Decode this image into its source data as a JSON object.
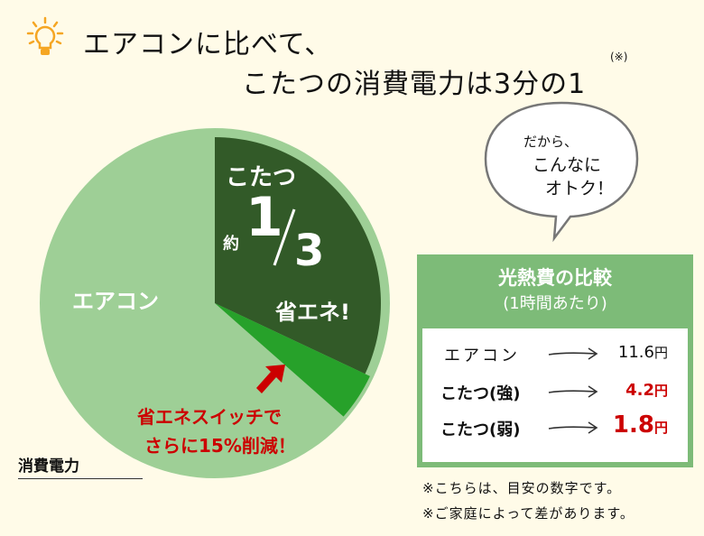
{
  "title": {
    "line1": "エアコンに比べて、",
    "line2": "こたつの消費電力は3分の1",
    "note_mark": "(※)",
    "icon": "lightbulb-icon"
  },
  "chart_data": {
    "type": "pie",
    "title": "",
    "slices": [
      {
        "label": "こたつ",
        "value": 0.32,
        "color": "#325a28"
      },
      {
        "label": "省エネスイッチ",
        "value": 0.045,
        "color": "#27a12a"
      },
      {
        "label": "エアコン",
        "value": 0.635,
        "color": "#9ecf96"
      }
    ],
    "annotations": {
      "kotatsu": "こたつ",
      "approx": "約",
      "numerator": "1",
      "denominator": "3",
      "savings": "省エネ!",
      "aircon": "エアコン",
      "switch_line1": "省エネスイッチで",
      "switch_line2": "さらに15%削減！",
      "axis_label": "消費電力"
    }
  },
  "bubble": {
    "line1": "だから、",
    "line2": "こんなに",
    "line3": "オトク！"
  },
  "comparison": {
    "title": "光熱費の比較",
    "subtitle": "(1時間あたり)",
    "rows": [
      {
        "label": "エアコン",
        "value": "11.6",
        "unit": "円"
      },
      {
        "label": "こたつ(強)",
        "value": "4.2",
        "unit": "円"
      },
      {
        "label": "こたつ(弱)",
        "value": "1.8",
        "unit": "円"
      }
    ]
  },
  "footnotes": [
    "※こちらは、目安の数字です。",
    "※ご家庭によって差があります。"
  ],
  "colors": {
    "accent_red": "#cc0000",
    "box_green": "#7dbb78"
  }
}
